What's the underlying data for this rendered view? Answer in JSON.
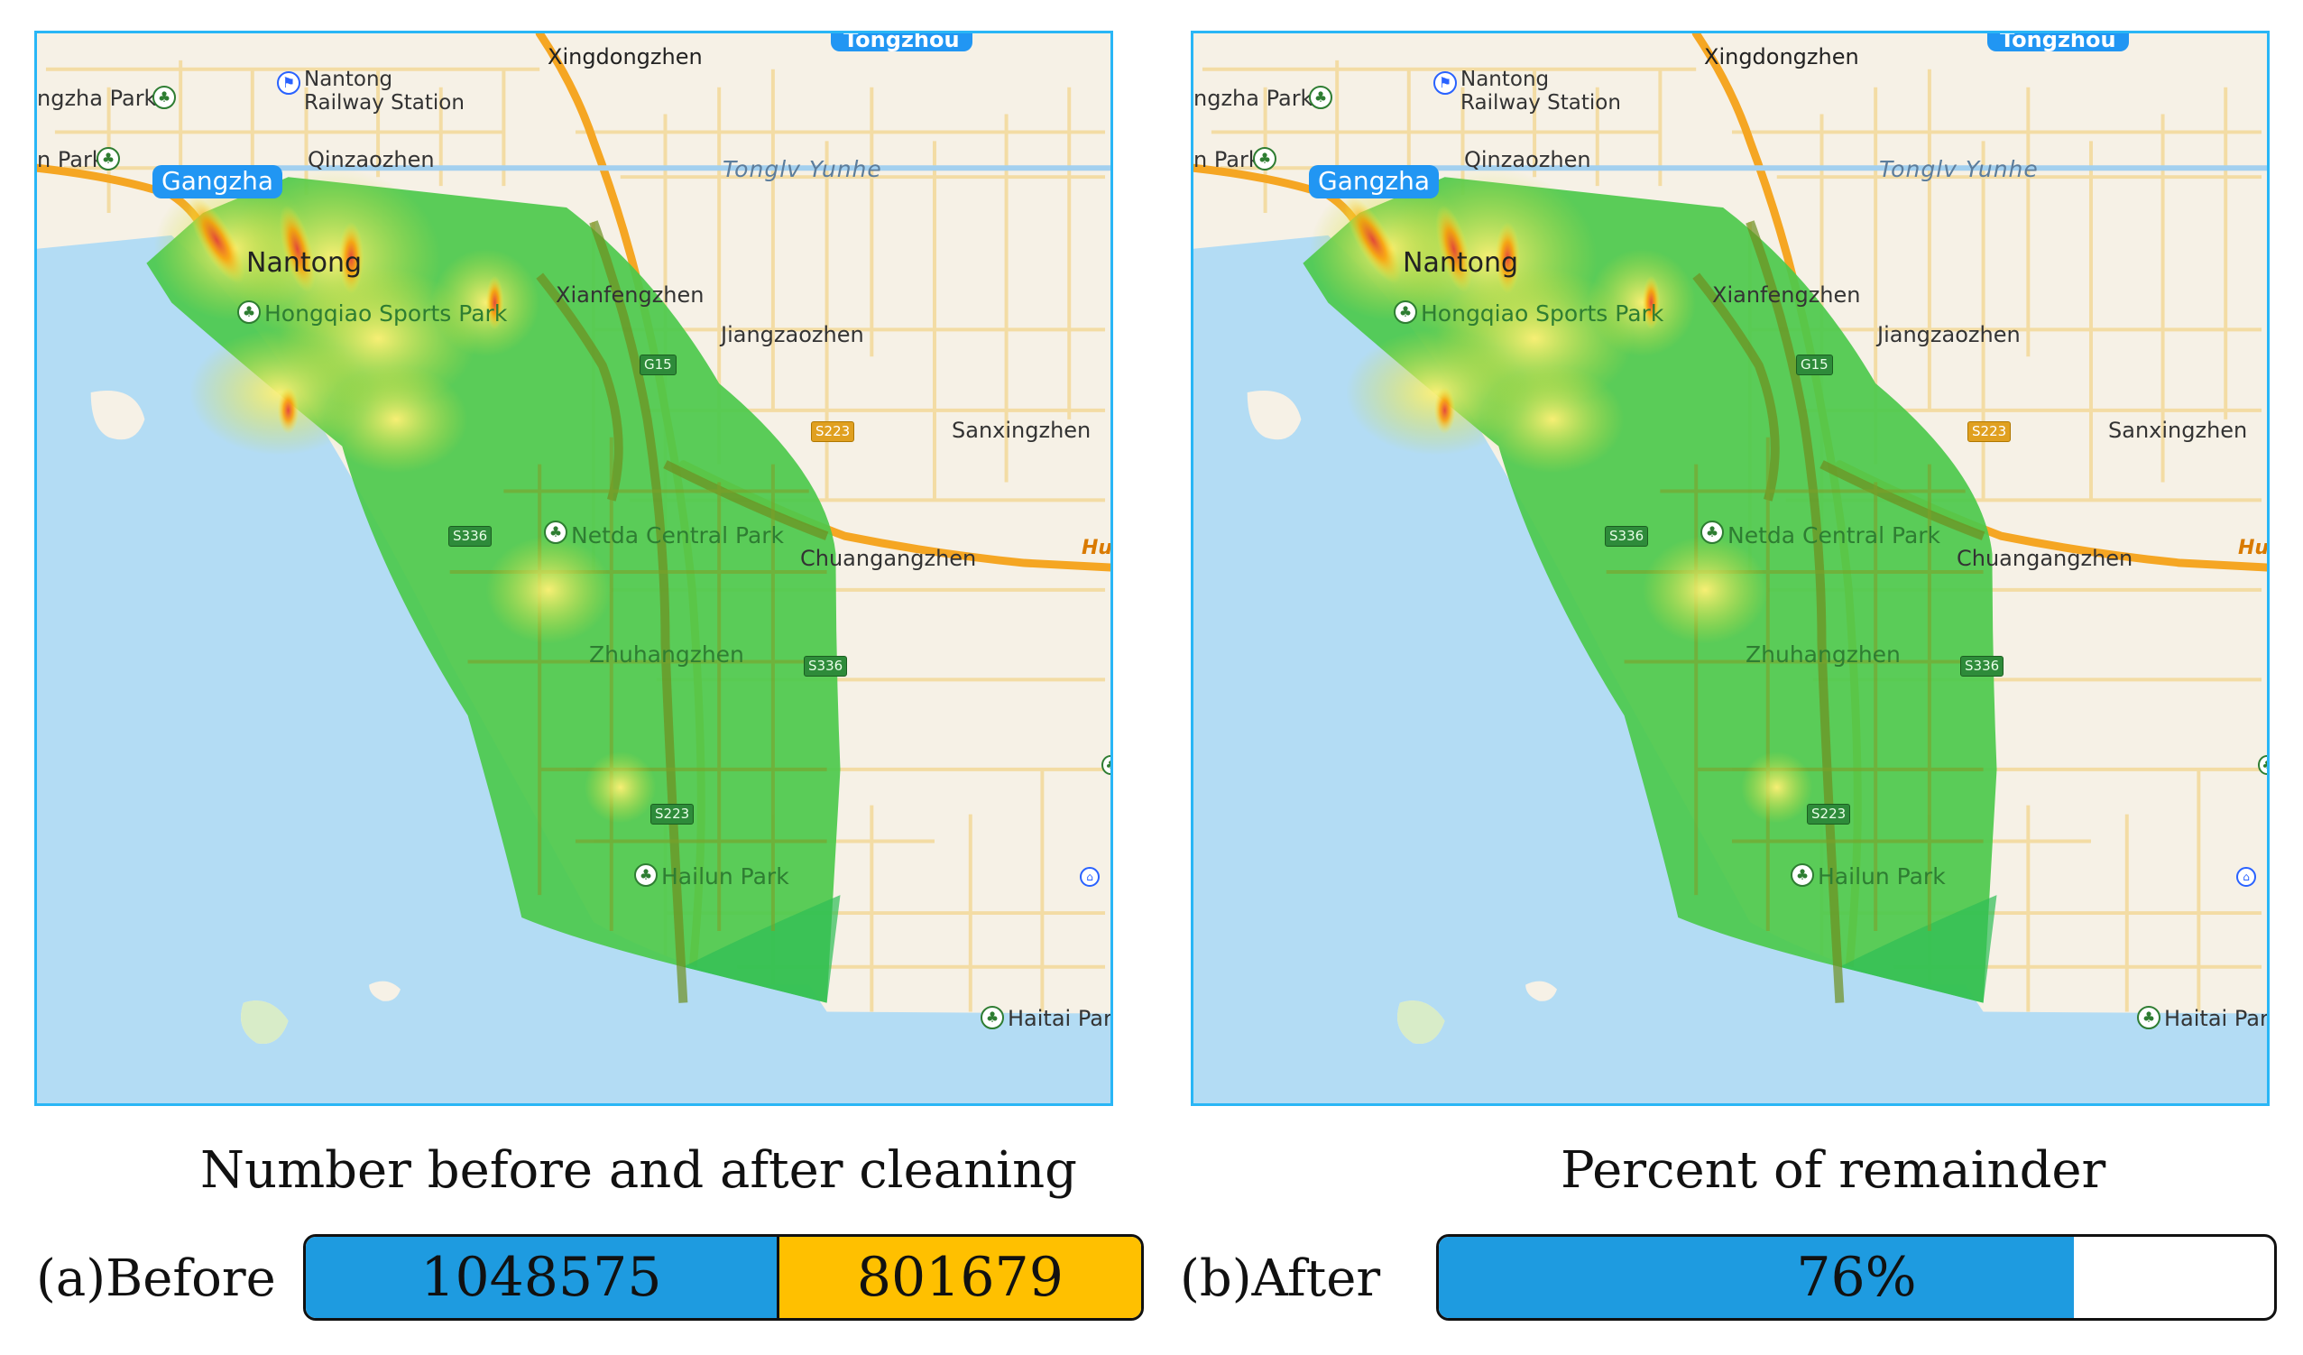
{
  "map": {
    "labels": {
      "xingdongzhen": "Xingdongzhen",
      "tongzhou": "Tongzhou",
      "nantong_railway": "Nantong\nRailway Station",
      "gangzha_park": "ngzha Park",
      "park_left": "n Park",
      "qinzaozhen": "Qinzaozhen",
      "gangzha": "Gangzha",
      "tonglv_yunhe": "Tonglv Yunhe",
      "nantong": "Nantong",
      "hongqiao_sports_park": "Hongqiao Sports Park",
      "xianfengzhen": "Xianfengzhen",
      "jiangzaozhen": "Jiangzaozhen",
      "sanxingzhen": "Sanxingzhen",
      "netda_central_park": "Netda Central Park",
      "chuangangzhen": "Chuangangzhen",
      "hus": "Hus",
      "zhuhangzhen": "Zhuhangzhen",
      "hailun_park": "Hailun Park",
      "haitai_park": "Haitai Park"
    },
    "shields": {
      "g15": "G15",
      "s223_top": "S223",
      "s336_left": "S336",
      "s336_right": "S336",
      "s223_bottom": "S223"
    },
    "icons": {
      "park": "tree-icon",
      "station": "train-icon"
    },
    "colors": {
      "border": "#29b6f6",
      "land": "#f6f1e6",
      "water": "#b3dcf4",
      "coverage": "#4cc94c",
      "density_high": "#e53935",
      "density_mid": "#ffeb3b",
      "highway": "#f5a623"
    }
  },
  "panels": [
    {
      "id": "panel-a"
    },
    {
      "id": "panel-b"
    }
  ],
  "captions": {
    "left_title": "Number before and after cleaning",
    "right_title": "Percent of remainder",
    "before_label": "(a)Before",
    "after_label": "(b)After"
  },
  "counts": {
    "before": "1048575",
    "after_cleaning": "801679",
    "before_value": 1048575,
    "after_value": 801679,
    "before_color": "#1e9be0",
    "after_color": "#ffc000"
  },
  "remainder": {
    "label": "76%",
    "fraction": 0.76,
    "fill_color": "#1e9be0"
  }
}
